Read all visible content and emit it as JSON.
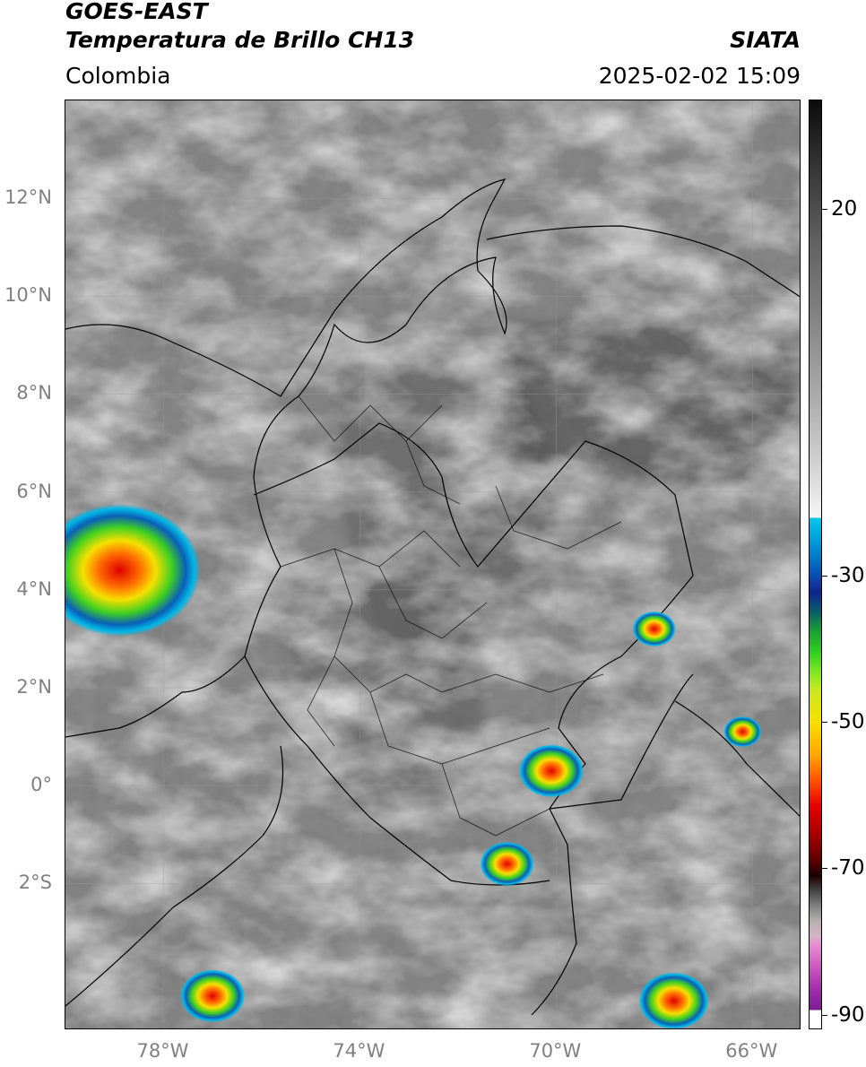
{
  "header": {
    "title_line1": "GOES-EAST",
    "title_line2": "Temperatura de Brillo CH13",
    "brand": "SIATA",
    "region": "Colombia",
    "timestamp": "2025-02-02 15:09"
  },
  "map": {
    "lat_range": [
      -5.0,
      14.0
    ],
    "lon_range": [
      -80.0,
      -65.0
    ],
    "lat_labels": [
      "12°N",
      "10°N",
      "8°N",
      "6°N",
      "4°N",
      "2°N",
      "0°",
      "2°S"
    ],
    "lat_values": [
      12,
      10,
      8,
      6,
      4,
      2,
      0,
      -2
    ],
    "lon_labels": [
      "78°W",
      "74°W",
      "70°W",
      "66°W"
    ],
    "lon_values": [
      -78,
      -74,
      -70,
      -66
    ],
    "convective_cores": [
      {
        "lat": 4.4,
        "lon": -78.9,
        "size": 3.0,
        "min_temp": -75
      },
      {
        "lat": 3.2,
        "lon": -68.0,
        "size": 0.8,
        "min_temp": -70
      },
      {
        "lat": 0.3,
        "lon": -70.1,
        "size": 1.2,
        "min_temp": -72
      },
      {
        "lat": -1.6,
        "lon": -71.0,
        "size": 1.0,
        "min_temp": -70
      },
      {
        "lat": -4.4,
        "lon": -67.6,
        "size": 1.3,
        "min_temp": -80
      },
      {
        "lat": -4.3,
        "lon": -77.0,
        "size": 1.2,
        "min_temp": -68
      },
      {
        "lat": 1.1,
        "lon": -66.2,
        "size": 0.7,
        "min_temp": -60
      }
    ]
  },
  "colorbar": {
    "ticks": [
      "20",
      "-30",
      "-50",
      "-70",
      "-90"
    ],
    "tick_values": [
      20,
      -30,
      -50,
      -70,
      -90
    ],
    "range": [
      35,
      -92
    ]
  }
}
